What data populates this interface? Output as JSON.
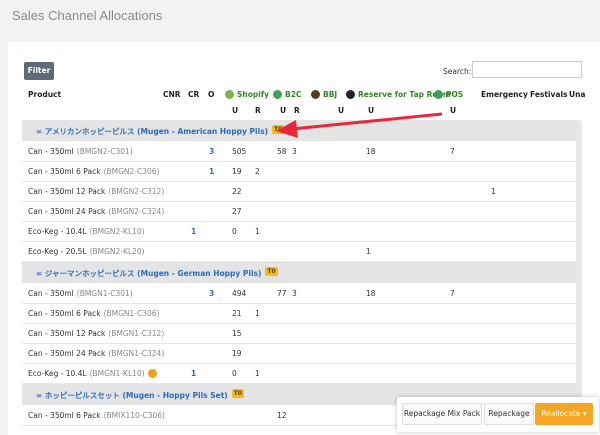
{
  "header": {
    "title": "Sales Channel Allocations"
  },
  "toolbar": {
    "filter": "Filter",
    "search_label": "Search:"
  },
  "table": {
    "columns": [
      "Product",
      "CNR",
      "CR",
      "O",
      "Shopify",
      "B2C",
      "BBJ",
      "Reserve for Tap Room",
      "POS",
      "Emergency",
      "Festivals",
      "Una"
    ],
    "subheaders": [
      "U",
      "R",
      "U",
      "R",
      "U",
      "U",
      "U"
    ],
    "groups": [
      {
        "name": "∞ アメリカンホッピーピルス (Mugen - American Hoppy Pils)",
        "badge": "T0",
        "rows": [
          {
            "product": "Can - 350ml",
            "code": "(BMGN2-C301)",
            "values": [
              null,
              null,
              3,
              505,
              null,
              58,
              3,
              null,
              18,
              7,
              null,
              null
            ]
          },
          {
            "product": "Can - 350ml 6 Pack",
            "code": "(BMGN2-C306)",
            "values": [
              null,
              null,
              1,
              19,
              2,
              null,
              null,
              null,
              null,
              null,
              null,
              null
            ]
          },
          {
            "product": "Can - 350ml 12 Pack",
            "code": "(BMGN2-C312)",
            "values": [
              null,
              null,
              null,
              22,
              null,
              null,
              null,
              null,
              null,
              null,
              1,
              null
            ]
          },
          {
            "product": "Can - 350ml 24 Pack",
            "code": "(BMGN2-C324)",
            "values": [
              null,
              null,
              null,
              27,
              null,
              null,
              null,
              null,
              null,
              null,
              null,
              null
            ]
          },
          {
            "product": "Eco-Keg - 10.4L",
            "code": "(BMGN2-KL10)",
            "values": [
              null,
              1,
              null,
              0,
              1,
              null,
              null,
              null,
              null,
              null,
              null,
              null
            ]
          },
          {
            "product": "Eco-Keg - 20.5L",
            "code": "(BMGN2-KL20)",
            "values": [
              null,
              null,
              null,
              null,
              null,
              null,
              null,
              null,
              1,
              null,
              null,
              null
            ]
          }
        ]
      },
      {
        "name": "∞ ジャーマンホッピーピルス (Mugen - German Hoppy Pils)",
        "badge": "T0",
        "rows": [
          {
            "product": "Can - 350ml",
            "code": "(BMGN1-C301)",
            "values": [
              null,
              null,
              3,
              494,
              null,
              77,
              3,
              null,
              18,
              7,
              null,
              null
            ]
          },
          {
            "product": "Can - 350ml 6 Pack",
            "code": "(BMGN1-C306)",
            "values": [
              null,
              null,
              null,
              21,
              1,
              null,
              null,
              null,
              null,
              null,
              null,
              null
            ]
          },
          {
            "product": "Can - 350ml 12 Pack",
            "code": "(BMGN1-C312)",
            "values": [
              null,
              null,
              null,
              15,
              null,
              null,
              null,
              null,
              null,
              null,
              null,
              null
            ]
          },
          {
            "product": "Can - 350ml 24 Pack",
            "code": "(BMGN1-C324)",
            "values": [
              null,
              null,
              null,
              19,
              null,
              null,
              null,
              null,
              null,
              null,
              null,
              null
            ]
          },
          {
            "product": "Eco-Keg - 10.4L",
            "code": "(BMGN1-KL10)",
            "values": [
              null,
              1,
              null,
              0,
              1,
              null,
              null,
              null,
              null,
              null,
              null,
              null
            ]
          }
        ]
      },
      {
        "name": "∞ ホッピーピルスセット (Mugen - Hoppy Pils Set)",
        "badge": "T0",
        "rows": [
          {
            "product": "Can - 350ml 6 Pack",
            "code": "(BMIX110-C306)",
            "values": [
              null,
              null,
              null,
              null,
              null,
              12,
              null,
              null,
              null,
              null,
              null,
              null
            ]
          }
        ]
      }
    ]
  },
  "actions": [
    "Repackage Mix Pack",
    "Repackage",
    "Reallocate"
  ]
}
